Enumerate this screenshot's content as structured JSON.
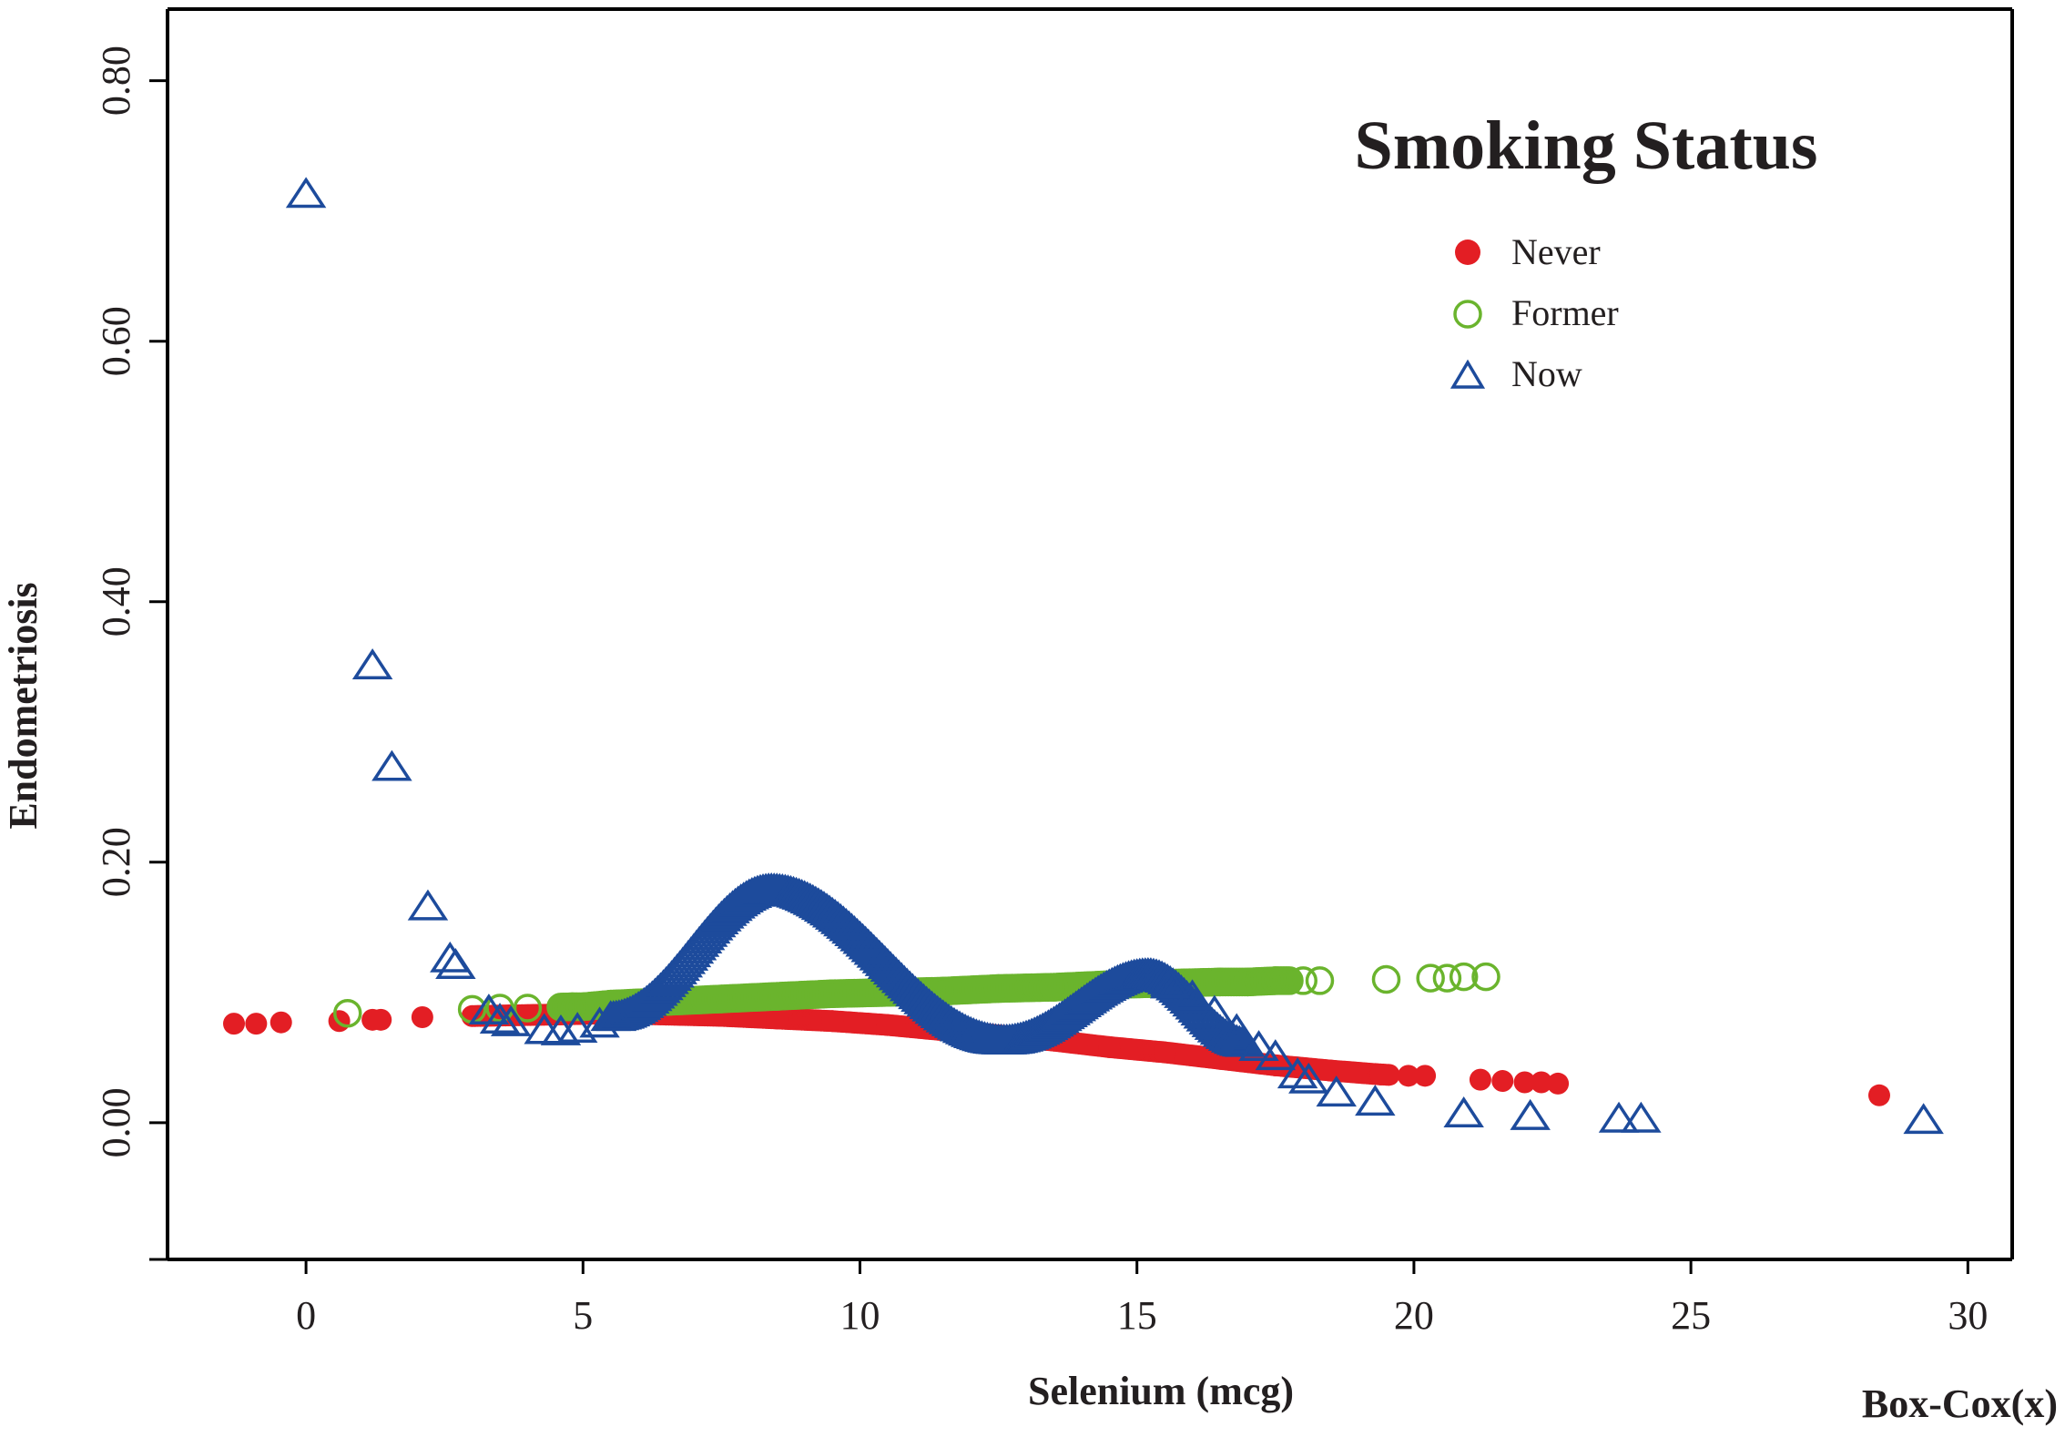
{
  "chart_data": {
    "type": "scatter",
    "xlabel": "Selenium (mcg)",
    "ylabel": "Endometriosis",
    "x_transform_label": "Box-Cox(x)",
    "xlim": [
      -2.5,
      30.8
    ],
    "ylim": [
      -0.105,
      0.855
    ],
    "x_ticks": [
      0,
      5,
      10,
      15,
      20,
      25,
      30
    ],
    "x_tick_labels": [
      "0",
      "5",
      "10",
      "15",
      "20",
      "25",
      "30"
    ],
    "y_ticks": [
      0.0,
      0.2,
      0.4,
      0.6,
      0.8
    ],
    "y_tick_labels": [
      "0.00",
      "0.20",
      "0.40",
      "0.60",
      "0.80"
    ],
    "grid": false,
    "legend": {
      "title": "Smoking Status",
      "position": "top-right",
      "entries": [
        "Never",
        "Former",
        "Now"
      ]
    },
    "colors": {
      "Never": "#e31e24",
      "Former": "#6ab42d",
      "Now": "#1d4b9c",
      "axis": "#000000",
      "text": "#231f20"
    },
    "series": [
      {
        "name": "Never",
        "marker": "filled-circle",
        "points": [
          [
            -1.3,
            0.076
          ],
          [
            -0.9,
            0.076
          ],
          [
            -0.45,
            0.077
          ],
          [
            0.6,
            0.078
          ],
          [
            1.2,
            0.079
          ],
          [
            1.35,
            0.079
          ],
          [
            2.1,
            0.081
          ],
          [
            3.2,
            0.082
          ],
          [
            4.5,
            0.083
          ],
          [
            5.5,
            0.084
          ],
          [
            6.5,
            0.083
          ],
          [
            7.5,
            0.082
          ],
          [
            8.5,
            0.08
          ],
          [
            9.5,
            0.078
          ],
          [
            10.5,
            0.075
          ],
          [
            11.5,
            0.071
          ],
          [
            12.5,
            0.067
          ],
          [
            13.5,
            0.063
          ],
          [
            14.5,
            0.058
          ],
          [
            15.5,
            0.054
          ],
          [
            16.5,
            0.049
          ],
          [
            17.5,
            0.044
          ],
          [
            18.5,
            0.04
          ],
          [
            19.4,
            0.037
          ],
          [
            19.9,
            0.036
          ],
          [
            20.2,
            0.036
          ],
          [
            21.2,
            0.033
          ],
          [
            21.6,
            0.032
          ],
          [
            22.0,
            0.031
          ],
          [
            22.3,
            0.031
          ],
          [
            22.6,
            0.03
          ],
          [
            28.4,
            0.021
          ]
        ],
        "curve": {
          "x_start": 3.0,
          "x_end": 19.6
        }
      },
      {
        "name": "Former",
        "marker": "open-circle",
        "points": [
          [
            0.75,
            0.084
          ],
          [
            3.0,
            0.087
          ],
          [
            3.5,
            0.088
          ],
          [
            4.0,
            0.088
          ],
          [
            4.8,
            0.089
          ],
          [
            5.0,
            0.089
          ],
          [
            5.5,
            0.091
          ],
          [
            6.5,
            0.093
          ],
          [
            7.5,
            0.095
          ],
          [
            8.5,
            0.097
          ],
          [
            9.5,
            0.099
          ],
          [
            10.5,
            0.1
          ],
          [
            11.5,
            0.101
          ],
          [
            12.5,
            0.103
          ],
          [
            13.5,
            0.104
          ],
          [
            14.5,
            0.106
          ],
          [
            15.5,
            0.107
          ],
          [
            16.5,
            0.108
          ],
          [
            17.0,
            0.108
          ],
          [
            17.5,
            0.109
          ],
          [
            18.0,
            0.109
          ],
          [
            18.3,
            0.109
          ],
          [
            19.5,
            0.11
          ],
          [
            20.3,
            0.111
          ],
          [
            20.6,
            0.111
          ],
          [
            20.9,
            0.112
          ],
          [
            21.3,
            0.112
          ]
        ],
        "curve": {
          "x_start": 4.6,
          "x_end": 17.8
        }
      },
      {
        "name": "Now",
        "marker": "open-triangle",
        "points": [
          [
            0.0,
            0.712
          ],
          [
            1.2,
            0.35
          ],
          [
            1.55,
            0.272
          ],
          [
            2.2,
            0.165
          ],
          [
            2.6,
            0.125
          ],
          [
            2.7,
            0.12
          ],
          [
            3.3,
            0.085
          ],
          [
            3.5,
            0.078
          ],
          [
            3.7,
            0.076
          ],
          [
            4.3,
            0.07
          ],
          [
            4.6,
            0.069
          ],
          [
            4.9,
            0.071
          ],
          [
            5.3,
            0.075
          ],
          [
            5.6,
            0.08
          ],
          [
            15.6,
            0.105
          ],
          [
            16.0,
            0.096
          ],
          [
            16.4,
            0.084
          ],
          [
            16.8,
            0.07
          ],
          [
            17.2,
            0.057
          ],
          [
            17.5,
            0.05
          ],
          [
            17.9,
            0.036
          ],
          [
            18.1,
            0.032
          ],
          [
            18.6,
            0.022
          ],
          [
            19.3,
            0.015
          ],
          [
            20.9,
            0.006
          ],
          [
            22.1,
            0.004
          ],
          [
            23.7,
            0.002
          ],
          [
            24.1,
            0.002
          ],
          [
            29.2,
            0.001
          ]
        ],
        "curve": {
          "x_start": 5.5,
          "x_end": 17.0,
          "peaks": [
            [
              8.4,
              0.178
            ],
            [
              15.2,
              0.113
            ]
          ],
          "trough": [
            12.6,
            0.062
          ]
        }
      }
    ]
  }
}
